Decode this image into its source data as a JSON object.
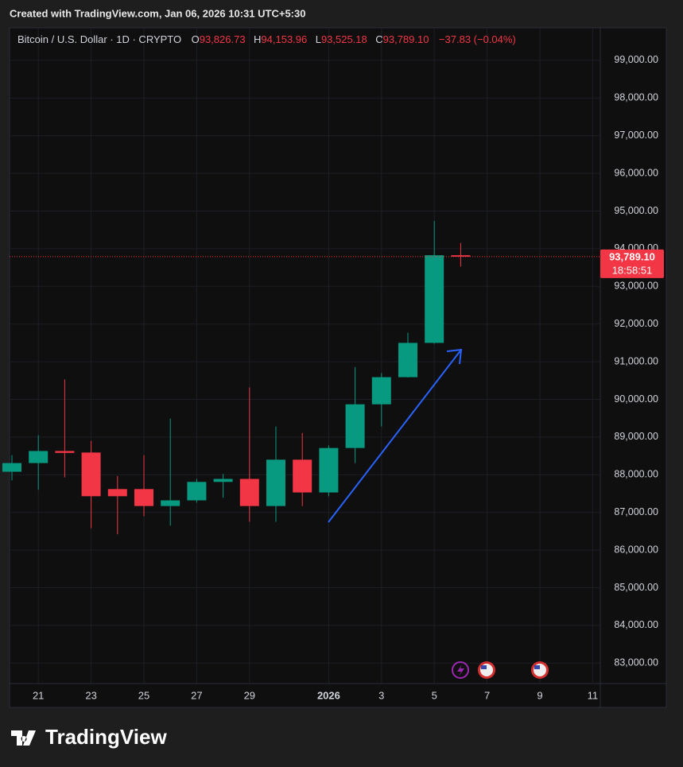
{
  "header": {
    "title": "Created with TradingView.com, Jan 06, 2026 10:31 UTC+5:30"
  },
  "legend": {
    "symbol": "Bitcoin / U.S. Dollar · 1D · CRYPTO",
    "open_label": "O",
    "open": "93,826.73",
    "high_label": "H",
    "high": "94,153.96",
    "low_label": "L",
    "low": "93,525.18",
    "close_label": "C",
    "close": "93,789.10",
    "change": "−37.83 (−0.04%)"
  },
  "price_tag": {
    "price": "93,789.10",
    "countdown": "18:58:51"
  },
  "footer": {
    "brand": "TradingView"
  },
  "chart_data": {
    "type": "candlestick",
    "categories": [
      null,
      "21",
      null,
      "23",
      null,
      "25",
      null,
      "27",
      null,
      "29",
      null,
      null,
      "2026",
      null,
      "3",
      null,
      "5",
      null,
      "7",
      null,
      "9",
      null,
      "11"
    ],
    "open": [
      88080,
      88310,
      88630,
      88590,
      87620,
      87620,
      87170,
      87320,
      87810,
      87890,
      87170,
      88400,
      87530,
      88710,
      89870,
      90590,
      91500,
      93826.73,
      null,
      null,
      null,
      null,
      null
    ],
    "high": [
      88520,
      89050,
      90530,
      88900,
      87970,
      88520,
      89490,
      87890,
      88020,
      90320,
      89280,
      89110,
      88780,
      90860,
      90700,
      91770,
      94740,
      94153.96,
      null,
      null,
      null,
      null,
      null
    ],
    "low": [
      87850,
      87600,
      87930,
      86580,
      86420,
      86900,
      86650,
      87260,
      87390,
      86750,
      86750,
      87170,
      87430,
      88310,
      89280,
      90580,
      91480,
      93525.18,
      null,
      null,
      null,
      null,
      null
    ],
    "close": [
      88310,
      88630,
      88580,
      87430,
      87430,
      87170,
      87320,
      87810,
      87890,
      87170,
      88400,
      87530,
      88710,
      89870,
      90590,
      91500,
      93826.73,
      93789.1,
      null,
      null,
      null,
      null,
      null
    ],
    "up_color": "#089981",
    "down_color": "#f23645",
    "ylim": [
      82500,
      99800
    ],
    "yticks": [
      {
        "value": 83000,
        "label": "83,000.00"
      },
      {
        "value": 84000,
        "label": "84,000.00"
      },
      {
        "value": 85000,
        "label": "85,000.00"
      },
      {
        "value": 86000,
        "label": "86,000.00"
      },
      {
        "value": 87000,
        "label": "87,000.00"
      },
      {
        "value": 88000,
        "label": "88,000.00"
      },
      {
        "value": 89000,
        "label": "89,000.00"
      },
      {
        "value": 90000,
        "label": "90,000.00"
      },
      {
        "value": 91000,
        "label": "91,000.00"
      },
      {
        "value": 92000,
        "label": "92,000.00"
      },
      {
        "value": 93000,
        "label": "93,000.00"
      },
      {
        "value": 94000,
        "label": "94,000.00"
      },
      {
        "value": 95000,
        "label": "95,000.00"
      },
      {
        "value": 96000,
        "label": "96,000.00"
      },
      {
        "value": 97000,
        "label": "97,000.00"
      },
      {
        "value": 98000,
        "label": "98,000.00"
      },
      {
        "value": 99000,
        "label": "99,000.00"
      }
    ],
    "grid": true
  }
}
